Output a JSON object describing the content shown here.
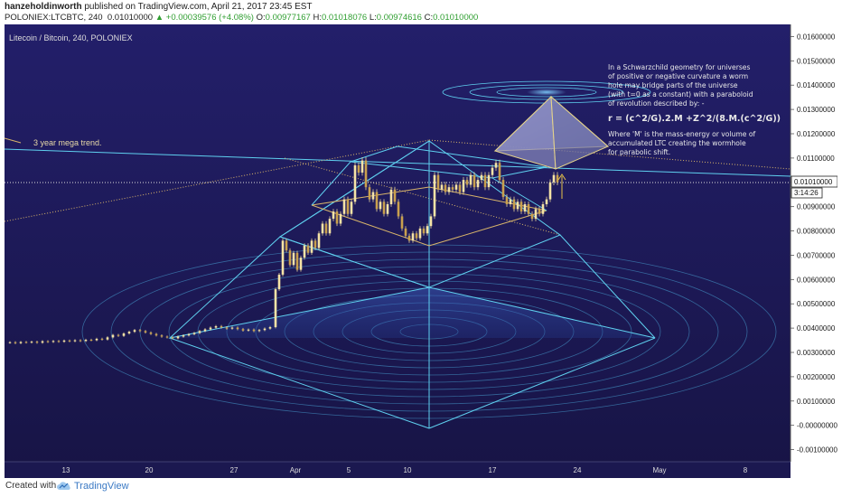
{
  "header": {
    "author": "hanzeholdinworth",
    "published_text": "published on TradingView.com, April 21, 2017 23:45 EST",
    "symbol": "POLONIEX:LTCBTC, 240",
    "last": "0.01010000",
    "change": "+0.00039576 (+4.08%)",
    "o_label": "O:",
    "o": "0.00977167",
    "h_label": "H:",
    "h": "0.01018076",
    "l_label": "L:",
    "l": "0.00974616",
    "c_label": "C:",
    "c": "0.01010000"
  },
  "chart_data": {
    "type": "candlestick",
    "title": "Litecoin / Bitcoin, 240, POLONIEX",
    "y_ticks": [
      "0.01600000",
      "0.01500000",
      "0.01400000",
      "0.01300000",
      "0.01200000",
      "0.01100000",
      "0.01000000",
      "0.00900000",
      "0.00800000",
      "0.00700000",
      "0.00600000",
      "0.00500000",
      "0.00400000",
      "0.00300000",
      "0.00200000",
      "0.00100000",
      "-0.00000000",
      "-0.00100000"
    ],
    "ylim": [
      -0.0015,
      0.0165
    ],
    "x_ticks": [
      "13",
      "20",
      "27",
      "Apr",
      "5",
      "10",
      "17",
      "24",
      "May",
      "8"
    ],
    "last_price_label": "0.01010000",
    "countdown_label": "3:14:26",
    "trend_label": "3 year mega trend.",
    "annotation": {
      "lines": [
        "In a Schwarzchild geometry for universes",
        "of positive or negative curvature a worm",
        "hole may bridge parts of the universe",
        "(with t=0 as a constant) with a paraboloid",
        "of revolution described by: -"
      ],
      "formula": "r = (c^2/G).2.M +Z^2/(8.M.(c^2/G))",
      "lines2": [
        "Where 'M' is the mass-energy or volume of",
        "accumulated LTC creating the wormhole",
        "for parabolic shift."
      ]
    },
    "series": [
      {
        "name": "",
        "points": [
          [
            0,
            0.0034
          ],
          [
            6,
            0.00342
          ],
          [
            12,
            0.00338
          ],
          [
            18,
            0.00343
          ],
          [
            24,
            0.00341
          ],
          [
            30,
            0.00344
          ],
          [
            36,
            0.0034
          ],
          [
            42,
            0.00346
          ],
          [
            48,
            0.00343
          ],
          [
            54,
            0.00347
          ],
          [
            60,
            0.00344
          ],
          [
            66,
            0.00349
          ],
          [
            72,
            0.00346
          ],
          [
            78,
            0.0035
          ],
          [
            84,
            0.00347
          ],
          [
            90,
            0.00352
          ],
          [
            96,
            0.0035
          ],
          [
            102,
            0.00356
          ],
          [
            108,
            0.00353
          ],
          [
            114,
            0.00362
          ],
          [
            120,
            0.00372
          ],
          [
            126,
            0.00368
          ],
          [
            132,
            0.00378
          ],
          [
            138,
            0.00385
          ],
          [
            144,
            0.00392
          ],
          [
            150,
            0.00388
          ],
          [
            156,
            0.00382
          ],
          [
            162,
            0.00376
          ],
          [
            168,
            0.0037
          ],
          [
            174,
            0.00365
          ],
          [
            180,
            0.00362
          ],
          [
            186,
            0.00358
          ],
          [
            192,
            0.00365
          ],
          [
            198,
            0.0037
          ],
          [
            204,
            0.00375
          ],
          [
            210,
            0.0038
          ],
          [
            216,
            0.00388
          ],
          [
            222,
            0.00395
          ],
          [
            228,
            0.00402
          ],
          [
            234,
            0.00408
          ],
          [
            240,
            0.00403
          ],
          [
            246,
            0.00398
          ],
          [
            252,
            0.00402
          ],
          [
            258,
            0.00396
          ],
          [
            264,
            0.0039
          ],
          [
            270,
            0.00394
          ],
          [
            276,
            0.00388
          ],
          [
            282,
            0.00392
          ],
          [
            288,
            0.00398
          ],
          [
            294,
            0.00404
          ],
          [
            300,
            0.0056
          ],
          [
            304,
            0.0062
          ],
          [
            308,
            0.0076
          ],
          [
            312,
            0.0072
          ],
          [
            316,
            0.0066
          ],
          [
            320,
            0.0071
          ],
          [
            324,
            0.0064
          ],
          [
            328,
            0.0069
          ],
          [
            332,
            0.0074
          ],
          [
            336,
            0.0071
          ],
          [
            340,
            0.0076
          ],
          [
            344,
            0.0073
          ],
          [
            348,
            0.0079
          ],
          [
            352,
            0.0083
          ],
          [
            356,
            0.0079
          ],
          [
            360,
            0.0085
          ],
          [
            364,
            0.0088
          ],
          [
            368,
            0.0083
          ],
          [
            372,
            0.0087
          ],
          [
            376,
            0.0093
          ],
          [
            380,
            0.0087
          ],
          [
            384,
            0.0092
          ],
          [
            388,
            0.0107
          ],
          [
            392,
            0.0104
          ],
          [
            396,
            0.0109
          ],
          [
            400,
            0.0098
          ],
          [
            404,
            0.0093
          ],
          [
            408,
            0.0096
          ],
          [
            412,
            0.0089
          ],
          [
            416,
            0.0092
          ],
          [
            420,
            0.0087
          ],
          [
            424,
            0.0091
          ],
          [
            428,
            0.0097
          ],
          [
            432,
            0.0092
          ],
          [
            436,
            0.0086
          ],
          [
            440,
            0.0081
          ],
          [
            444,
            0.0078
          ],
          [
            448,
            0.0076
          ],
          [
            452,
            0.0079
          ],
          [
            456,
            0.0077
          ],
          [
            460,
            0.0081
          ],
          [
            464,
            0.0079
          ],
          [
            468,
            0.0082
          ],
          [
            472,
            0.0086
          ],
          [
            476,
            0.0103
          ],
          [
            480,
            0.0097
          ],
          [
            484,
            0.0099
          ],
          [
            488,
            0.0096
          ],
          [
            492,
            0.0098
          ],
          [
            496,
            0.0097
          ],
          [
            500,
            0.0099
          ],
          [
            504,
            0.0096
          ],
          [
            508,
            0.0101
          ],
          [
            512,
            0.0099
          ],
          [
            516,
            0.0103
          ],
          [
            520,
            0.0098
          ],
          [
            524,
            0.0101
          ],
          [
            528,
            0.0103
          ],
          [
            532,
            0.0098
          ],
          [
            536,
            0.0103
          ],
          [
            540,
            0.0106
          ],
          [
            544,
            0.0108
          ],
          [
            548,
            0.0101
          ],
          [
            552,
            0.0094
          ],
          [
            556,
            0.0091
          ],
          [
            560,
            0.0093
          ],
          [
            564,
            0.0089
          ],
          [
            568,
            0.0092
          ],
          [
            572,
            0.0088
          ],
          [
            576,
            0.0091
          ],
          [
            580,
            0.0087
          ],
          [
            584,
            0.0085
          ],
          [
            588,
            0.0089
          ],
          [
            592,
            0.0087
          ],
          [
            596,
            0.0091
          ],
          [
            600,
            0.0093
          ],
          [
            604,
            0.01
          ],
          [
            608,
            0.0103
          ],
          [
            612,
            0.01
          ]
        ]
      }
    ]
  }
}
